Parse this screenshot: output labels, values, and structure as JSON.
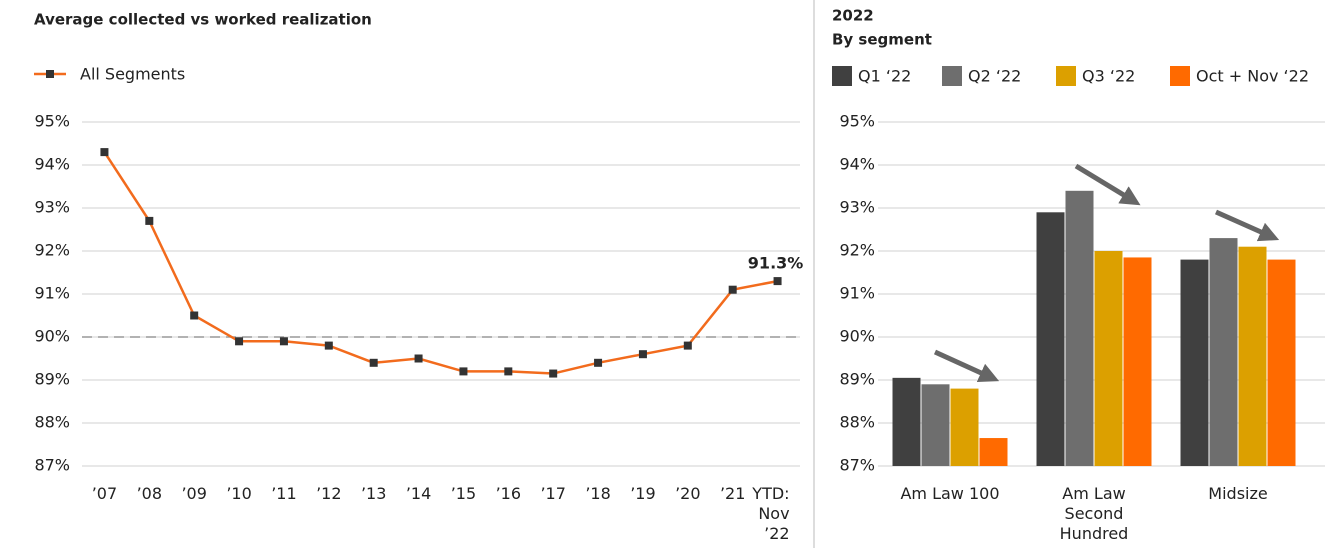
{
  "chart_data": [
    {
      "type": "line",
      "title": "Average collected vs worked realization",
      "categories": [
        "’07",
        "’08",
        "’09",
        "’10",
        "’11",
        "’12",
        "’13",
        "’14",
        "’15",
        "’16",
        "’17",
        "’18",
        "’19",
        "’20",
        "’21",
        "YTD: Nov ’22"
      ],
      "series": [
        {
          "name": "All Segments",
          "color": "#f26b1d",
          "marker_color": "#333333",
          "values": [
            94.3,
            92.7,
            90.5,
            89.9,
            89.9,
            89.8,
            89.4,
            89.5,
            89.2,
            89.2,
            89.15,
            89.4,
            89.6,
            89.8,
            91.1,
            91.3
          ],
          "value_labels": [
            null,
            null,
            null,
            null,
            null,
            null,
            null,
            null,
            null,
            null,
            null,
            null,
            null,
            null,
            null,
            "91.3%"
          ]
        }
      ],
      "ylim": [
        87,
        95
      ],
      "yticks": [
        {
          "value": 87,
          "label": "87%"
        },
        {
          "value": 88,
          "label": "88%"
        },
        {
          "value": 89,
          "label": "89%"
        },
        {
          "value": 90,
          "label": "90%"
        },
        {
          "value": 91,
          "label": "91%"
        },
        {
          "value": 92,
          "label": "92%"
        },
        {
          "value": 93,
          "label": "93%"
        },
        {
          "value": 94,
          "label": "94%"
        },
        {
          "value": 95,
          "label": "95%"
        }
      ],
      "grid": true,
      "reference_line": 90,
      "legend": "top-left"
    },
    {
      "type": "grouped_bar",
      "title": "2022",
      "subtitle": "By segment",
      "categories": [
        "Am Law 100",
        "Am Law Second Hundred",
        "Midsize"
      ],
      "series": [
        {
          "name": "Q1 ‘22",
          "color": "#404040",
          "values": [
            89.05,
            92.9,
            91.8
          ]
        },
        {
          "name": "Q2 ‘22",
          "color": "#6e6e6e",
          "values": [
            88.9,
            93.4,
            92.3
          ]
        },
        {
          "name": "Q3 ‘22",
          "color": "#dca000",
          "values": [
            88.8,
            92.0,
            92.1
          ]
        },
        {
          "name": "Oct + Nov ‘22",
          "color": "#ff6a00",
          "values": [
            87.65,
            91.85,
            91.8
          ]
        }
      ],
      "ylim": [
        87,
        95
      ],
      "yticks": [
        {
          "value": 87,
          "label": "87%"
        },
        {
          "value": 88,
          "label": "88%"
        },
        {
          "value": 89,
          "label": "89%"
        },
        {
          "value": 90,
          "label": "90%"
        },
        {
          "value": 91,
          "label": "91%"
        },
        {
          "value": 92,
          "label": "92%"
        },
        {
          "value": 93,
          "label": "93%"
        },
        {
          "value": 94,
          "label": "94%"
        },
        {
          "value": 95,
          "label": "95%"
        }
      ],
      "grid": true,
      "legend": "top"
    }
  ]
}
